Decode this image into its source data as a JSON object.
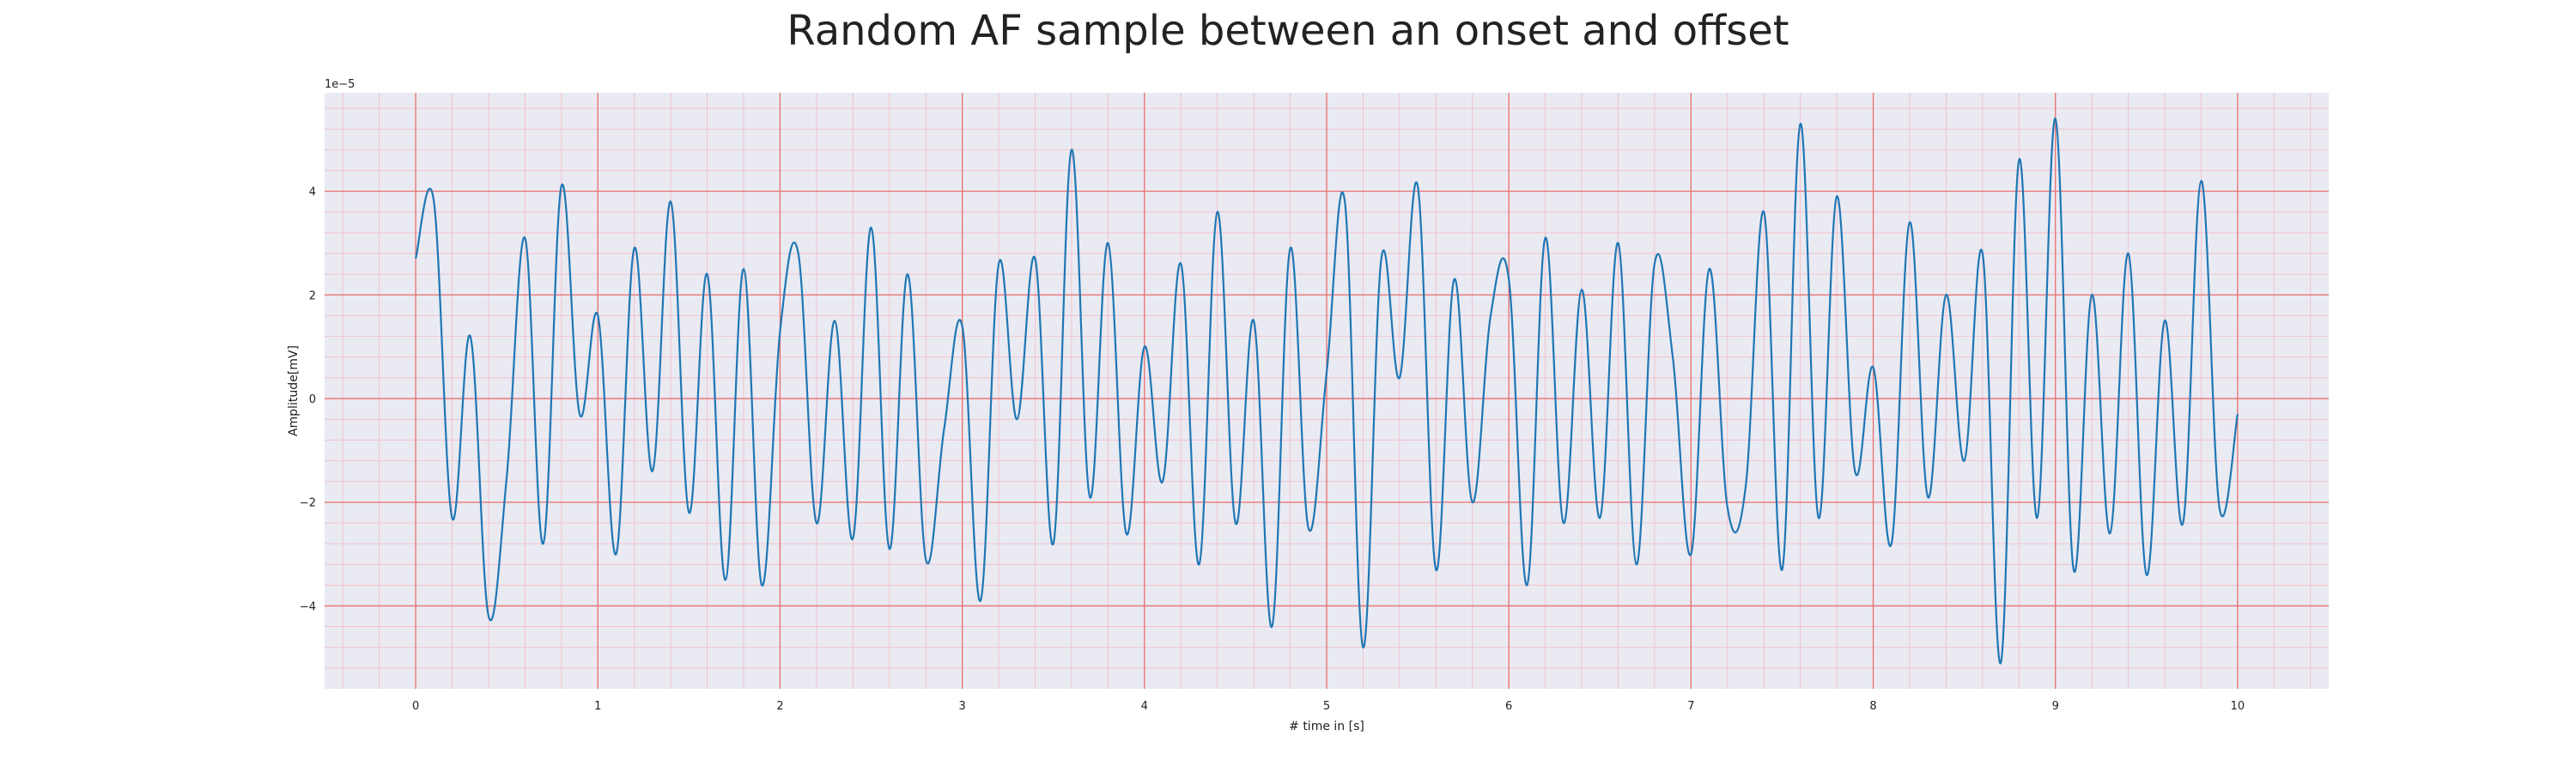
{
  "chart_data": {
    "type": "line",
    "title": "Random AF sample between an onset and offset",
    "xlabel": "# time in [s]",
    "ylabel": "Amplitude[mV]",
    "offset_label": "1e−5",
    "xlim": [
      -0.5,
      10.5
    ],
    "ylim": [
      -5.6,
      5.9
    ],
    "x_ticks": [
      0,
      1,
      2,
      3,
      4,
      5,
      6,
      7,
      8,
      9,
      10
    ],
    "y_ticks": [
      -4,
      -2,
      0,
      2,
      4
    ],
    "y_tick_labels": [
      "−4",
      "−2",
      "0",
      "2",
      "4"
    ],
    "grid": true,
    "colors": {
      "line": "#1f77b4",
      "plot_background": "#eaeaf2",
      "major_grid": "#e8706f",
      "minor_grid": "#f4b9c2"
    },
    "series": [
      {
        "x": [
          0,
          0.1,
          0.2,
          0.3,
          0.4,
          0.5,
          0.6,
          0.7,
          0.8,
          0.9,
          1.0,
          1.1,
          1.2,
          1.3,
          1.4,
          1.5,
          1.6,
          1.7,
          1.8,
          1.9,
          2.0,
          2.1,
          2.2,
          2.3,
          2.4,
          2.5,
          2.6,
          2.7,
          2.8,
          2.9,
          3.0,
          3.1,
          3.2,
          3.3,
          3.4,
          3.5,
          3.6,
          3.7,
          3.8,
          3.9,
          4.0,
          4.1,
          4.2,
          4.3,
          4.4,
          4.5,
          4.6,
          4.7,
          4.8,
          4.9,
          5.0,
          5.1,
          5.2,
          5.3,
          5.4,
          5.5,
          5.6,
          5.7,
          5.8,
          5.9,
          6.0,
          6.1,
          6.2,
          6.3,
          6.4,
          6.5,
          6.6,
          6.7,
          6.8,
          6.9,
          7.0,
          7.1,
          7.2,
          7.3,
          7.4,
          7.5,
          7.6,
          7.7,
          7.8,
          7.9,
          8.0,
          8.1,
          8.2,
          8.3,
          8.4,
          8.5,
          8.6,
          8.7,
          8.8,
          8.9,
          9.0,
          9.1,
          9.2,
          9.3,
          9.4,
          9.5,
          9.6,
          9.7,
          9.8,
          9.9,
          10.0
        ],
        "values": [
          2.7,
          3.8,
          -2.3,
          1.2,
          -4.2,
          -1.5,
          3.1,
          -2.8,
          4.1,
          -0.3,
          1.6,
          -3.0,
          2.9,
          -1.4,
          3.8,
          -2.2,
          2.4,
          -3.5,
          2.5,
          -3.6,
          1.3,
          2.8,
          -2.4,
          1.5,
          -2.7,
          3.3,
          -2.9,
          2.4,
          -3.1,
          -0.6,
          1.4,
          -3.9,
          2.6,
          -0.4,
          2.7,
          -2.8,
          4.8,
          -1.9,
          3.0,
          -2.6,
          1.0,
          -1.6,
          2.6,
          -3.2,
          3.6,
          -2.4,
          1.5,
          -4.4,
          2.9,
          -2.5,
          0.5,
          3.8,
          -4.8,
          2.7,
          0.4,
          4.1,
          -3.3,
          2.3,
          -2.0,
          1.6,
          2.3,
          -3.6,
          3.1,
          -2.4,
          2.1,
          -2.3,
          3.0,
          -3.2,
          2.6,
          0.8,
          -3.0,
          2.5,
          -2.1,
          -1.7,
          3.6,
          -3.3,
          5.3,
          -2.3,
          3.9,
          -1.4,
          0.6,
          -2.8,
          3.4,
          -1.9,
          2.0,
          -1.2,
          2.8,
          -5.1,
          4.6,
          -2.3,
          5.4,
          -3.3,
          2.0,
          -2.6,
          2.8,
          -3.4,
          1.5,
          -2.4,
          4.2,
          -2.1,
          -0.3
        ]
      }
    ]
  }
}
